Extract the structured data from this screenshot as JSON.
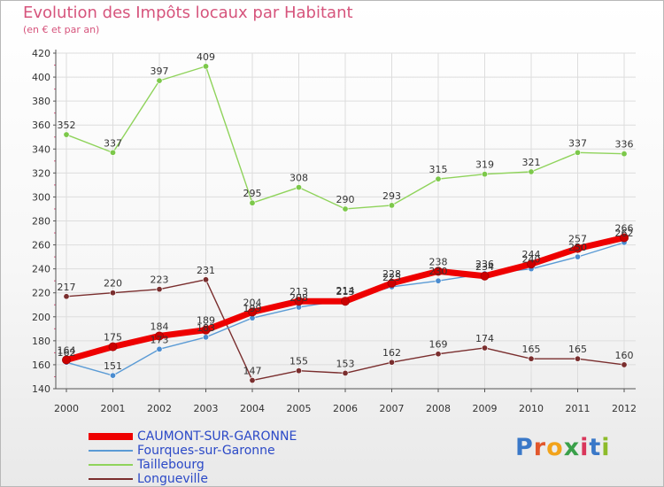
{
  "header": {
    "title": "Evolution des Impôts locaux par Habitant",
    "subtitle": "(en € et par an)"
  },
  "logo": {
    "text": "Proxiti",
    "letter_colors": [
      "#3a78c8",
      "#e2572c",
      "#f2a31b",
      "#3aa04a",
      "#d9365b",
      "#3a78c8",
      "#8dbb2a"
    ]
  },
  "chart_data": {
    "type": "line",
    "title": "Evolution des Impôts locaux par Habitant",
    "subtitle": "(en € et par an)",
    "xlabel": "",
    "ylabel": "",
    "x": [
      "2000",
      "2001",
      "2002",
      "2003",
      "2004",
      "2005",
      "2006",
      "2007",
      "2008",
      "2009",
      "2010",
      "2011",
      "2012"
    ],
    "ylim": [
      140,
      420
    ],
    "yticks": [
      140,
      160,
      180,
      200,
      220,
      240,
      260,
      280,
      300,
      320,
      340,
      360,
      380,
      400,
      420
    ],
    "grid": true,
    "legend_position": "bottom-left",
    "series": [
      {
        "name": "Taillebourg",
        "color": "#8fd35b",
        "marker": "#7cc84a",
        "values": [
          352,
          337,
          397,
          409,
          295,
          308,
          290,
          293,
          315,
          319,
          321,
          337,
          336
        ],
        "labels": [
          "352",
          "337",
          "397",
          "409",
          "295",
          "308",
          "290",
          "293",
          "315",
          "319",
          "321",
          "337",
          "336"
        ]
      },
      {
        "name": "Longueville",
        "color": "#7a2e2e",
        "marker": "#7a2e2e",
        "values": [
          217,
          220,
          223,
          231,
          147,
          155,
          153,
          162,
          169,
          174,
          165,
          165,
          160
        ],
        "labels": [
          "217",
          "220",
          "223",
          "231",
          "147",
          "155",
          "153",
          "162",
          "169",
          "174",
          "165",
          "165",
          "160"
        ]
      },
      {
        "name": "Fourques-sur-Garonne",
        "color": "#5b9bd5",
        "marker": "#4a8cd0",
        "values": [
          162,
          151,
          173,
          183,
          199,
          208,
          214,
          225,
          230,
          236,
          240,
          250,
          262
        ],
        "labels": [
          "162",
          "151",
          "173",
          "183",
          "199",
          "208",
          "214",
          "225",
          "230",
          "236",
          "240",
          "250",
          "262"
        ]
      },
      {
        "name": "CAUMONT-SUR-GARONNE",
        "color": "#ee0000",
        "marker": "#cc0000",
        "values": [
          164,
          175,
          184,
          189,
          204,
          213,
          213,
          228,
          238,
          234,
          244,
          257,
          266
        ],
        "labels": [
          "164",
          "175",
          "184",
          "189",
          "204",
          "213",
          "213",
          "228",
          "238",
          "234",
          "244",
          "257",
          "266"
        ]
      }
    ]
  },
  "legend": [
    {
      "label": "CAUMONT-SUR-GARONNE",
      "color": "#ee0000"
    },
    {
      "label": "Fourques-sur-Garonne",
      "color": "#5b9bd5"
    },
    {
      "label": "Taillebourg",
      "color": "#8fd35b"
    },
    {
      "label": "Longueville",
      "color": "#7a2e2e"
    }
  ]
}
